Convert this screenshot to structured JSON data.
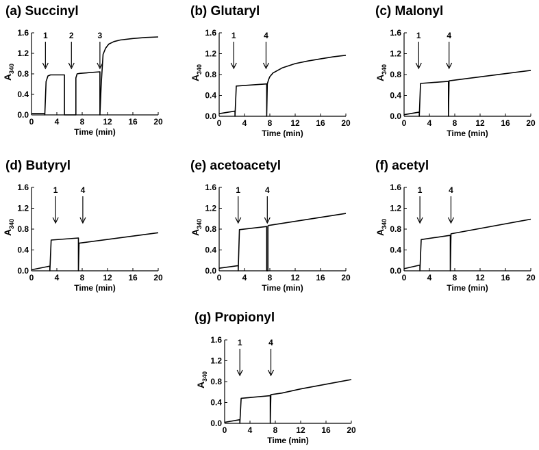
{
  "chart_data": [
    {
      "type": "line",
      "panel": "a",
      "title": "(a) Succinyl",
      "xlabel": "Time (min)",
      "ylabel": "A",
      "ylabel_sub": "340",
      "xlim": [
        0,
        20
      ],
      "ylim": [
        0,
        1.6
      ],
      "xticks": [
        0,
        4,
        8,
        12,
        16,
        20
      ],
      "yticks": [
        0.0,
        0.4,
        0.8,
        1.2,
        1.6
      ],
      "xtick_labels": [
        "0",
        "4",
        "8",
        "12",
        "16",
        "20"
      ],
      "ytick_labels": [
        "0.0",
        "0.4",
        "0.8",
        "1.2",
        "1.6"
      ],
      "additions": [
        {
          "label": "1",
          "x": 2.2
        },
        {
          "label": "2",
          "x": 6.3
        },
        {
          "label": "3",
          "x": 10.8
        }
      ],
      "series": [
        {
          "name": "A340",
          "x": [
            0,
            2.1,
            2.1,
            2.3,
            2.6,
            3.0,
            5.2,
            5.2,
            5.3,
            7.0,
            7.0,
            7.2,
            7.6,
            10.8,
            10.8,
            11.0,
            11.3,
            11.7,
            12.2,
            13.0,
            14.0,
            16.0,
            18.0,
            20.0
          ],
          "y": [
            0.03,
            0.03,
            0.0,
            0.65,
            0.76,
            0.78,
            0.78,
            0.0,
            0.0,
            0.0,
            0.72,
            0.8,
            0.81,
            0.84,
            0.0,
            0.6,
            1.18,
            1.3,
            1.38,
            1.43,
            1.46,
            1.49,
            1.51,
            1.52
          ]
        }
      ]
    },
    {
      "type": "line",
      "panel": "b",
      "title": "(b) Glutaryl",
      "xlabel": "Time (min)",
      "ylabel": "A",
      "ylabel_sub": "340",
      "xlim": [
        0,
        20
      ],
      "ylim": [
        0,
        1.6
      ],
      "xticks": [
        0,
        4,
        8,
        12,
        16,
        20
      ],
      "yticks": [
        0.0,
        0.4,
        0.8,
        1.2,
        1.6
      ],
      "xtick_labels": [
        "0",
        "4",
        "8",
        "12",
        "16",
        "20"
      ],
      "ytick_labels": [
        "0.0",
        "0.4",
        "0.8",
        "1.2",
        "1.6"
      ],
      "additions": [
        {
          "label": "1",
          "x": 2.3
        },
        {
          "label": "4",
          "x": 7.4
        }
      ],
      "series": [
        {
          "name": "A340",
          "x": [
            0,
            2.5,
            2.5,
            2.7,
            7.5,
            7.5,
            7.6,
            7.8,
            8.0,
            8.5,
            10.0,
            12.0,
            14.0,
            16.0,
            18.0,
            20.0
          ],
          "y": [
            0.05,
            0.1,
            0.0,
            0.58,
            0.62,
            0.0,
            0.62,
            0.7,
            0.76,
            0.83,
            0.93,
            1.01,
            1.06,
            1.1,
            1.14,
            1.17
          ]
        }
      ]
    },
    {
      "type": "line",
      "panel": "c",
      "title": "(c) Malonyl",
      "xlabel": "Time (min)",
      "ylabel": "A",
      "ylabel_sub": "340",
      "xlim": [
        0,
        20
      ],
      "ylim": [
        0,
        1.6
      ],
      "xticks": [
        0,
        4,
        8,
        12,
        16,
        20
      ],
      "yticks": [
        0.0,
        0.4,
        0.8,
        1.2,
        1.6
      ],
      "xtick_labels": [
        "0",
        "4",
        "8",
        "12",
        "16",
        "20"
      ],
      "ytick_labels": [
        "0.0",
        "0.4",
        "0.8",
        "1.2",
        "1.6"
      ],
      "additions": [
        {
          "label": "1",
          "x": 2.3
        },
        {
          "label": "4",
          "x": 7.1
        }
      ],
      "series": [
        {
          "name": "A340",
          "x": [
            0,
            2.4,
            2.4,
            2.6,
            7.0,
            7.0,
            7.1,
            20.0
          ],
          "y": [
            0.03,
            0.08,
            0.0,
            0.63,
            0.67,
            0.0,
            0.68,
            0.88
          ]
        }
      ]
    },
    {
      "type": "line",
      "panel": "d",
      "title": "(d) Butyryl",
      "xlabel": "Time (min)",
      "ylabel": "A",
      "ylabel_sub": "340",
      "xlim": [
        0,
        20
      ],
      "ylim": [
        0,
        1.6
      ],
      "xticks": [
        0,
        4,
        8,
        12,
        16,
        20
      ],
      "yticks": [
        0.0,
        0.4,
        0.8,
        1.2,
        1.6
      ],
      "xtick_labels": [
        "0",
        "4",
        "8",
        "12",
        "16",
        "20"
      ],
      "ytick_labels": [
        "0.0",
        "0.4",
        "0.8",
        "1.2",
        "1.6"
      ],
      "additions": [
        {
          "label": "1",
          "x": 3.8
        },
        {
          "label": "4",
          "x": 8.1
        }
      ],
      "series": [
        {
          "name": "A340",
          "x": [
            0,
            2.9,
            2.9,
            3.1,
            7.4,
            7.4,
            7.5,
            20.0
          ],
          "y": [
            0.02,
            0.09,
            0.0,
            0.59,
            0.63,
            0.0,
            0.53,
            0.73
          ]
        }
      ]
    },
    {
      "type": "line",
      "panel": "e",
      "title": "(e) acetoacetyl",
      "xlabel": "Time (min)",
      "ylabel": "A",
      "ylabel_sub": "340",
      "xlim": [
        0,
        20
      ],
      "ylim": [
        0,
        1.6
      ],
      "xticks": [
        0,
        4,
        8,
        12,
        16,
        20
      ],
      "yticks": [
        0.0,
        0.4,
        0.8,
        1.2,
        1.6
      ],
      "xtick_labels": [
        "0",
        "4",
        "8",
        "12",
        "16",
        "20"
      ],
      "ytick_labels": [
        "0.0",
        "0.4",
        "0.8",
        "1.2",
        "1.6"
      ],
      "additions": [
        {
          "label": "1",
          "x": 3.0
        },
        {
          "label": "4",
          "x": 7.6
        }
      ],
      "series": [
        {
          "name": "A340",
          "x": [
            0,
            3.0,
            3.0,
            3.2,
            7.5,
            7.5,
            7.7,
            7.7,
            7.8,
            20.0
          ],
          "y": [
            0.05,
            0.1,
            0.0,
            0.79,
            0.85,
            0.0,
            0.0,
            0.86,
            0.87,
            1.1
          ]
        }
      ]
    },
    {
      "type": "line",
      "panel": "f",
      "title": "(f) acetyl",
      "xlabel": "Time (min)",
      "ylabel": "A",
      "ylabel_sub": "340",
      "xlim": [
        0,
        20
      ],
      "ylim": [
        0,
        1.6
      ],
      "xticks": [
        0,
        4,
        8,
        12,
        16,
        20
      ],
      "yticks": [
        0.0,
        0.4,
        0.8,
        1.2,
        1.6
      ],
      "xtick_labels": [
        "0",
        "4",
        "8",
        "12",
        "16",
        "20"
      ],
      "ytick_labels": [
        "0.0",
        "0.4",
        "0.8",
        "1.2",
        "1.6"
      ],
      "additions": [
        {
          "label": "1",
          "x": 2.5
        },
        {
          "label": "4",
          "x": 7.4
        }
      ],
      "series": [
        {
          "name": "A340",
          "x": [
            0,
            2.5,
            2.5,
            2.7,
            7.3,
            7.3,
            7.4,
            20.0
          ],
          "y": [
            0.04,
            0.11,
            0.0,
            0.6,
            0.68,
            0.0,
            0.71,
            0.99
          ]
        }
      ]
    },
    {
      "type": "line",
      "panel": "g",
      "title": "(g) Propionyl",
      "xlabel": "Time (min)",
      "ylabel": "A",
      "ylabel_sub": "340",
      "xlim": [
        0,
        20
      ],
      "ylim": [
        0,
        1.6
      ],
      "xticks": [
        0,
        4,
        8,
        12,
        16,
        20
      ],
      "yticks": [
        0.0,
        0.4,
        0.8,
        1.2,
        1.6
      ],
      "xtick_labels": [
        "0",
        "4",
        "8",
        "12",
        "16",
        "20"
      ],
      "ytick_labels": [
        "0.0",
        "0.4",
        "0.8",
        "1.2",
        "1.6"
      ],
      "additions": [
        {
          "label": "1",
          "x": 2.4
        },
        {
          "label": "4",
          "x": 7.3
        }
      ],
      "series": [
        {
          "name": "A340",
          "x": [
            0,
            2.4,
            2.4,
            2.6,
            7.2,
            7.2,
            7.3,
            9.0,
            12.0,
            16.0,
            20.0
          ],
          "y": [
            0.02,
            0.07,
            0.0,
            0.48,
            0.53,
            0.0,
            0.55,
            0.58,
            0.66,
            0.75,
            0.84
          ]
        }
      ]
    }
  ]
}
